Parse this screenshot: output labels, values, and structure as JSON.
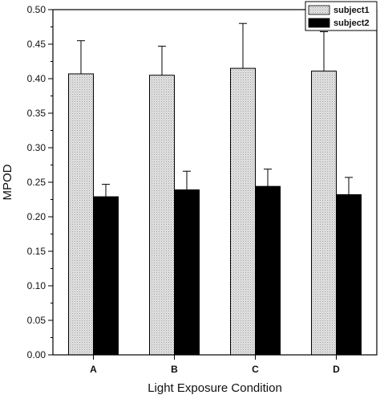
{
  "chart_data": {
    "type": "bar",
    "title": "",
    "xlabel": "Light Exposure Condition",
    "ylabel": "MPOD",
    "categories": [
      "A",
      "B",
      "C",
      "D"
    ],
    "ylim": [
      0,
      0.5
    ],
    "yticks": [
      "0.00",
      "0.05",
      "0.10",
      "0.15",
      "0.20",
      "0.25",
      "0.30",
      "0.35",
      "0.40",
      "0.45",
      "0.50"
    ],
    "grid": false,
    "legend_position": "top-right",
    "series": [
      {
        "name": "subject1",
        "values": [
          0.407,
          0.405,
          0.415,
          0.411
        ],
        "errors": [
          0.048,
          0.042,
          0.065,
          0.057
        ],
        "color": "#d9d9d9"
      },
      {
        "name": "subject2",
        "values": [
          0.229,
          0.239,
          0.244,
          0.232
        ],
        "errors": [
          0.018,
          0.027,
          0.025,
          0.025
        ],
        "color": "#000000"
      }
    ]
  }
}
